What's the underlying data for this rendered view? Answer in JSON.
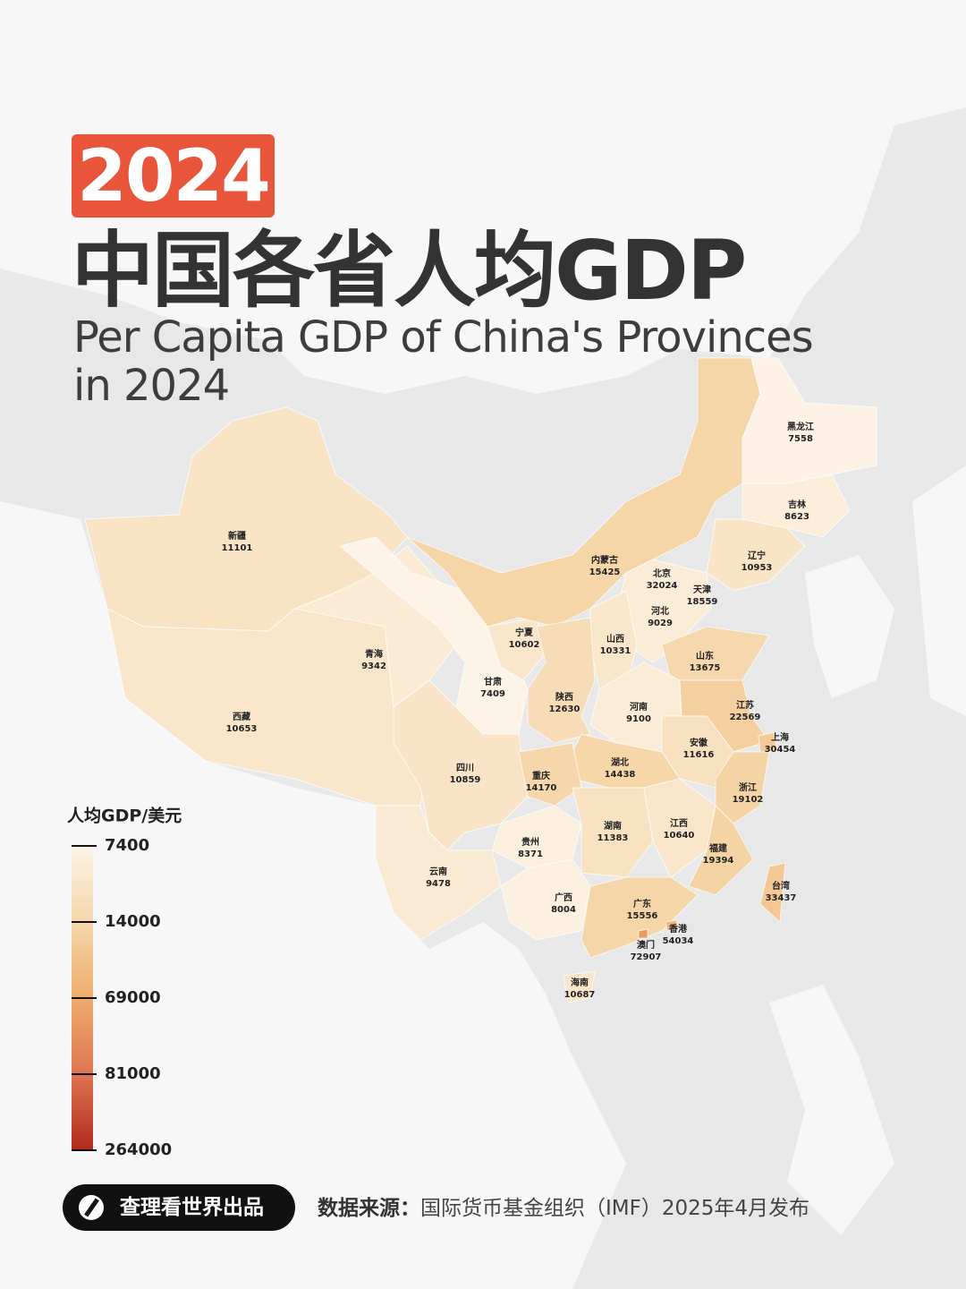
{
  "chart_data": {
    "type": "map",
    "year": "2024",
    "title": "中国各省人均GDP",
    "subtitle": "Per Capita GDP of China's Provinces in 2024",
    "regions": [
      {
        "name": "新疆",
        "value": 11101
      },
      {
        "name": "西藏",
        "value": 10653
      },
      {
        "name": "青海",
        "value": 9342
      },
      {
        "name": "甘肃",
        "value": 7409
      },
      {
        "name": "宁夏",
        "value": 10602
      },
      {
        "name": "内蒙古",
        "value": 15425
      },
      {
        "name": "黑龙江",
        "value": 7558
      },
      {
        "name": "吉林",
        "value": 8623
      },
      {
        "name": "辽宁",
        "value": 10953
      },
      {
        "name": "北京",
        "value": 32024
      },
      {
        "name": "天津",
        "value": 18559
      },
      {
        "name": "河北",
        "value": 9029
      },
      {
        "name": "山西",
        "value": 10331
      },
      {
        "name": "陕西",
        "value": 12630
      },
      {
        "name": "山东",
        "value": 13675
      },
      {
        "name": "河南",
        "value": 9100
      },
      {
        "name": "江苏",
        "value": 22569
      },
      {
        "name": "上海",
        "value": 30454
      },
      {
        "name": "安徽",
        "value": 11616
      },
      {
        "name": "湖北",
        "value": 14438
      },
      {
        "name": "四川",
        "value": 10859
      },
      {
        "name": "重庆",
        "value": 14170
      },
      {
        "name": "浙江",
        "value": 19102
      },
      {
        "name": "湖南",
        "value": 11383
      },
      {
        "name": "江西",
        "value": 10640
      },
      {
        "name": "贵州",
        "value": 8371
      },
      {
        "name": "福建",
        "value": 19394
      },
      {
        "name": "云南",
        "value": 9478
      },
      {
        "name": "广西",
        "value": 8004
      },
      {
        "name": "广东",
        "value": 15556
      },
      {
        "name": "台湾",
        "value": 33437
      },
      {
        "name": "香港",
        "value": 54034
      },
      {
        "name": "澳门",
        "value": 72907
      },
      {
        "name": "海南",
        "value": 10687
      }
    ],
    "legend": {
      "title": "人均GDP/美元",
      "ticks": [
        7400,
        14000,
        69000,
        81000,
        264000
      ],
      "colors": [
        "#fdf3e6",
        "#f5d7ab",
        "#eeac6c",
        "#df7552",
        "#b02a1c"
      ]
    }
  },
  "footer": {
    "brand": "查理看世界出品",
    "source_label": "数据来源：",
    "source": "国际货币基金组织（IMF）2025年4月发布"
  }
}
